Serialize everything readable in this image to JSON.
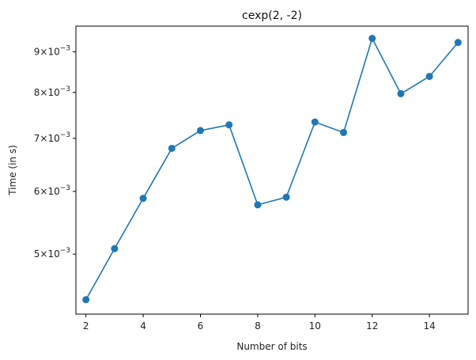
{
  "chart_data": {
    "type": "line",
    "title": "cexp(2, -2)",
    "xlabel": "Number of bits",
    "ylabel": "Time (in s)",
    "y_scale": "log",
    "xlim": [
      1.65,
      15.35
    ],
    "ylim": [
      0.0042,
      0.0097
    ],
    "x_ticks": [
      2,
      4,
      6,
      8,
      10,
      12,
      14
    ],
    "x_tick_labels": [
      "2",
      "4",
      "6",
      "8",
      "10",
      "12",
      "14"
    ],
    "y_ticks": [
      0.005,
      0.006,
      0.007,
      0.008,
      0.009
    ],
    "y_tick_labels": [
      {
        "mantissa": "5",
        "base": "10",
        "exp": "−3"
      },
      {
        "mantissa": "6",
        "base": "10",
        "exp": "−3"
      },
      {
        "mantissa": "7",
        "base": "10",
        "exp": "−3"
      },
      {
        "mantissa": "8",
        "base": "10",
        "exp": "−3"
      },
      {
        "mantissa": "9",
        "base": "10",
        "exp": "−3"
      }
    ],
    "grid": false,
    "series": [
      {
        "color": "#1f77b4",
        "marker": "circle",
        "x": [
          2,
          3,
          4,
          5,
          6,
          7,
          8,
          9,
          10,
          11,
          12,
          13,
          14,
          15
        ],
        "y": [
          0.00438,
          0.00508,
          0.00588,
          0.0068,
          0.00716,
          0.00728,
          0.00577,
          0.0059,
          0.00734,
          0.00712,
          0.00936,
          0.00797,
          0.00838,
          0.00925
        ]
      }
    ]
  }
}
